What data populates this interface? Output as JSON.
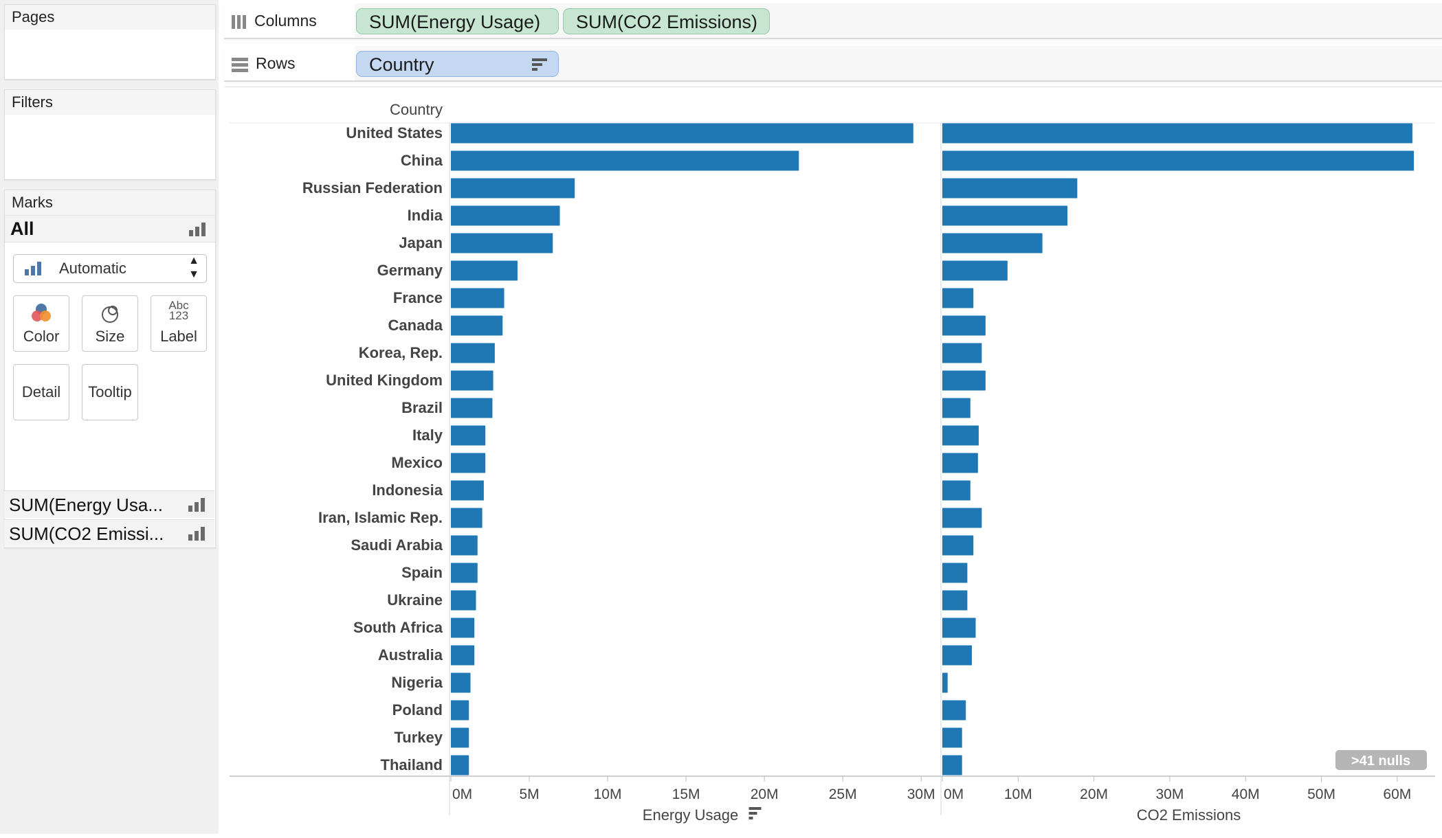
{
  "left_panels": {
    "pages_title": "Pages",
    "filters_title": "Filters",
    "marks_title": "Marks",
    "marks_all": "All",
    "mark_type": "Automatic",
    "mark_buttons": {
      "color": "Color",
      "size": "Size",
      "label": "Label",
      "label_icon_top": "Abc",
      "label_icon_bottom": "123",
      "detail": "Detail",
      "tooltip": "Tooltip"
    },
    "measures": [
      "SUM(Energy Usa...",
      "SUM(CO2 Emissi..."
    ]
  },
  "shelves": {
    "columns_label": "Columns",
    "columns_pills": [
      "SUM(Energy Usage)",
      "SUM(CO2 Emissions)"
    ],
    "rows_label": "Rows",
    "rows_pill": "Country"
  },
  "colors": {
    "bar": "#1f77b4",
    "pill_green": "#c7e6d2",
    "pill_blue": "#c5d8f2"
  },
  "chart_data": {
    "type": "bar",
    "orientation": "horizontal",
    "row_header": "Country",
    "categories": [
      "United States",
      "China",
      "Russian Federation",
      "India",
      "Japan",
      "Germany",
      "France",
      "Canada",
      "Korea, Rep.",
      "United Kingdom",
      "Brazil",
      "Italy",
      "Mexico",
      "Indonesia",
      "Iran, Islamic Rep.",
      "Saudi Arabia",
      "Spain",
      "Ukraine",
      "South Africa",
      "Australia",
      "Nigeria",
      "Poland",
      "Turkey",
      "Thailand"
    ],
    "panels": [
      {
        "measure": "Energy Usage",
        "xlabel": "Energy Usage",
        "xlim": [
          0,
          31000000
        ],
        "ticks": [
          0,
          5000000,
          10000000,
          15000000,
          20000000,
          25000000,
          30000000
        ],
        "tick_labels": [
          "0M",
          "5M",
          "10M",
          "15M",
          "20M",
          "25M",
          "30M"
        ],
        "values": [
          29500000,
          22200000,
          7900000,
          6950000,
          6500000,
          4250000,
          3400000,
          3300000,
          2800000,
          2700000,
          2650000,
          2200000,
          2200000,
          2100000,
          2000000,
          1700000,
          1700000,
          1600000,
          1500000,
          1500000,
          1250000,
          1150000,
          1150000,
          1150000
        ]
      },
      {
        "measure": "CO2 Emissions",
        "xlabel": "CO2 Emissions",
        "xlim": [
          0,
          65000000
        ],
        "ticks": [
          0,
          10000000,
          20000000,
          30000000,
          40000000,
          50000000,
          60000000
        ],
        "tick_labels": [
          "0M",
          "10M",
          "20M",
          "30M",
          "40M",
          "50M",
          "60M"
        ],
        "values": [
          62000000,
          62200000,
          17800000,
          16500000,
          13200000,
          8600000,
          4100000,
          5700000,
          5200000,
          5700000,
          3700000,
          4800000,
          4700000,
          3700000,
          5200000,
          4100000,
          3300000,
          3300000,
          4400000,
          3900000,
          700000,
          3100000,
          2600000,
          2600000
        ]
      }
    ],
    "nulls_badge": ">41 nulls",
    "grid": false
  }
}
